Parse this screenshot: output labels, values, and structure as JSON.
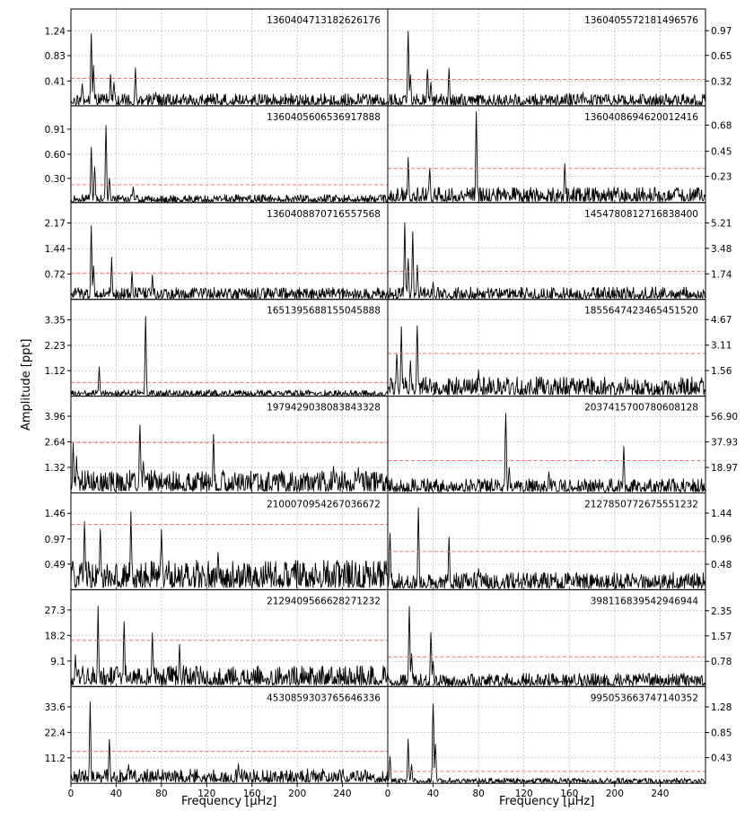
{
  "figure": {
    "ylabel": "Amplitude [ppt]",
    "xlabel_left": "Frequency [μHz]",
    "xlabel_right": "Frequency [μHz]"
  },
  "chart_data": [
    {
      "type": "line",
      "id": "1360404713182626176",
      "column": "left",
      "row": 0,
      "xlim": [
        0,
        280
      ],
      "ylim": [
        0,
        1.6
      ],
      "yticks": [
        "0.41",
        "0.83",
        "1.24"
      ],
      "threshold": 0.45,
      "peaks": [
        {
          "x": 10,
          "y": 0.38
        },
        {
          "x": 18,
          "y": 1.35
        },
        {
          "x": 20,
          "y": 0.7
        },
        {
          "x": 35,
          "y": 0.55
        },
        {
          "x": 38,
          "y": 0.42
        },
        {
          "x": 57,
          "y": 0.68
        },
        {
          "x": 75,
          "y": 0.25
        }
      ]
    },
    {
      "type": "line",
      "id": "1360405572181496576",
      "column": "right",
      "row": 0,
      "xlim": [
        0,
        280
      ],
      "ylim": [
        0,
        1.25
      ],
      "yticks": [
        "0.32",
        "0.65",
        "0.97"
      ],
      "threshold": 0.34,
      "peaks": [
        {
          "x": 18,
          "y": 1.12
        },
        {
          "x": 20,
          "y": 0.45
        },
        {
          "x": 35,
          "y": 0.55
        },
        {
          "x": 38,
          "y": 0.35
        },
        {
          "x": 54,
          "y": 0.5
        },
        {
          "x": 172,
          "y": 0.18
        }
      ]
    },
    {
      "type": "line",
      "id": "1360405606536917888",
      "column": "left",
      "row": 1,
      "xlim": [
        0,
        280
      ],
      "ylim": [
        0,
        1.2
      ],
      "yticks": [
        "0.30",
        "0.60",
        "0.91"
      ],
      "threshold": 0.22,
      "peaks": [
        {
          "x": 18,
          "y": 0.78
        },
        {
          "x": 21,
          "y": 0.5
        },
        {
          "x": 31,
          "y": 1.0
        },
        {
          "x": 34,
          "y": 0.35
        },
        {
          "x": 55,
          "y": 0.22
        }
      ]
    },
    {
      "type": "line",
      "id": "1360408694620012416",
      "column": "right",
      "row": 1,
      "xlim": [
        0,
        280
      ],
      "ylim": [
        0,
        0.85
      ],
      "yticks": [
        "0.23",
        "0.45",
        "0.68"
      ],
      "threshold": 0.3,
      "peaks": [
        {
          "x": 18,
          "y": 0.4
        },
        {
          "x": 37,
          "y": 0.35
        },
        {
          "x": 78,
          "y": 0.8
        },
        {
          "x": 156,
          "y": 0.38
        }
      ]
    },
    {
      "type": "line",
      "id": "1360408870716557568",
      "column": "left",
      "row": 2,
      "xlim": [
        0,
        280
      ],
      "ylim": [
        0,
        2.75
      ],
      "yticks": [
        "0.72",
        "1.44",
        "2.17"
      ],
      "threshold": 0.75,
      "peaks": [
        {
          "x": 18,
          "y": 2.3
        },
        {
          "x": 20,
          "y": 1.0
        },
        {
          "x": 36,
          "y": 1.25
        },
        {
          "x": 54,
          "y": 0.85
        },
        {
          "x": 72,
          "y": 0.7
        }
      ]
    },
    {
      "type": "line",
      "id": "1454780812716838400",
      "column": "right",
      "row": 2,
      "xlim": [
        0,
        280
      ],
      "ylim": [
        0,
        6.6
      ],
      "yticks": [
        "1.74",
        "3.48",
        "5.21"
      ],
      "threshold": 1.9,
      "peaks": [
        {
          "x": 15,
          "y": 5.6
        },
        {
          "x": 18,
          "y": 3.2
        },
        {
          "x": 22,
          "y": 5.1
        },
        {
          "x": 26,
          "y": 2.5
        },
        {
          "x": 40,
          "y": 1.3
        }
      ]
    },
    {
      "type": "line",
      "id": "1651395688155045888",
      "column": "left",
      "row": 3,
      "xlim": [
        0,
        280
      ],
      "ylim": [
        0,
        4.25
      ],
      "yticks": [
        "1.12",
        "2.23",
        "3.35"
      ],
      "threshold": 0.6,
      "peaks": [
        {
          "x": 25,
          "y": 1.3
        },
        {
          "x": 66,
          "y": 3.7
        }
      ]
    },
    {
      "type": "line",
      "id": "1855647423465451520",
      "column": "right",
      "row": 3,
      "xlim": [
        0,
        280
      ],
      "ylim": [
        0,
        5.9
      ],
      "yticks": [
        "1.56",
        "3.11",
        "4.67"
      ],
      "threshold": 2.6,
      "peaks": [
        {
          "x": 8,
          "y": 3.0
        },
        {
          "x": 12,
          "y": 4.4
        },
        {
          "x": 20,
          "y": 2.4
        },
        {
          "x": 26,
          "y": 4.9
        },
        {
          "x": 80,
          "y": 1.7
        },
        {
          "x": 105,
          "y": 1.2
        }
      ]
    },
    {
      "type": "line",
      "id": "1979429038083843328",
      "column": "left",
      "row": 4,
      "xlim": [
        0,
        280
      ],
      "ylim": [
        0,
        5.0
      ],
      "yticks": [
        "1.32",
        "2.64",
        "3.96"
      ],
      "threshold": 2.6,
      "peaks": [
        {
          "x": 2,
          "y": 2.9
        },
        {
          "x": 5,
          "y": 1.9
        },
        {
          "x": 61,
          "y": 4.1
        },
        {
          "x": 64,
          "y": 1.9
        },
        {
          "x": 126,
          "y": 3.4
        },
        {
          "x": 232,
          "y": 1.6
        },
        {
          "x": 254,
          "y": 1.5
        }
      ]
    },
    {
      "type": "line",
      "id": "2037415700780608128",
      "column": "right",
      "row": 4,
      "xlim": [
        0,
        280
      ],
      "ylim": [
        0,
        72
      ],
      "yticks": [
        "18.97",
        "37.93",
        "56.90"
      ],
      "threshold": 24,
      "peaks": [
        {
          "x": 104,
          "y": 66
        },
        {
          "x": 107,
          "y": 22
        },
        {
          "x": 142,
          "y": 18
        },
        {
          "x": 208,
          "y": 36
        }
      ]
    },
    {
      "type": "line",
      "id": "2100070954267036672",
      "column": "left",
      "row": 5,
      "xlim": [
        0,
        280
      ],
      "ylim": [
        0,
        1.85
      ],
      "yticks": [
        "0.49",
        "0.97",
        "1.46"
      ],
      "threshold": 1.25,
      "peaks": [
        {
          "x": 12,
          "y": 1.45
        },
        {
          "x": 26,
          "y": 1.35
        },
        {
          "x": 53,
          "y": 1.5
        },
        {
          "x": 80,
          "y": 1.3
        },
        {
          "x": 130,
          "y": 0.75
        }
      ]
    },
    {
      "type": "line",
      "id": "2127850772675551232",
      "column": "right",
      "row": 5,
      "xlim": [
        0,
        280
      ],
      "ylim": [
        0,
        1.82
      ],
      "yticks": [
        "0.48",
        "0.96",
        "1.44"
      ],
      "threshold": 0.72,
      "peaks": [
        {
          "x": 2,
          "y": 1.2
        },
        {
          "x": 27,
          "y": 1.6
        },
        {
          "x": 54,
          "y": 1.0
        },
        {
          "x": 80,
          "y": 0.45
        }
      ]
    },
    {
      "type": "line",
      "id": "2129409566628271232",
      "column": "left",
      "row": 6,
      "xlim": [
        0,
        280
      ],
      "ylim": [
        0,
        34.5
      ],
      "yticks": [
        "9.1",
        "18.2",
        "27.3"
      ],
      "threshold": 16.5,
      "peaks": [
        {
          "x": 24,
          "y": 29
        },
        {
          "x": 47,
          "y": 25
        },
        {
          "x": 72,
          "y": 21
        },
        {
          "x": 96,
          "y": 17
        },
        {
          "x": 4,
          "y": 12
        }
      ]
    },
    {
      "type": "line",
      "id": "398116839542946944",
      "column": "right",
      "row": 6,
      "xlim": [
        0,
        280
      ],
      "ylim": [
        0,
        3.0
      ],
      "yticks": [
        "0.78",
        "1.57",
        "2.35"
      ],
      "threshold": 0.92,
      "peaks": [
        {
          "x": 19,
          "y": 2.8
        },
        {
          "x": 21,
          "y": 1.1
        },
        {
          "x": 38,
          "y": 1.9
        },
        {
          "x": 40,
          "y": 0.9
        }
      ]
    },
    {
      "type": "line",
      "id": "4530859303765646336",
      "column": "left",
      "row": 7,
      "xlim": [
        0,
        280
      ],
      "ylim": [
        0,
        42.5
      ],
      "yticks": [
        "11.2",
        "22.4",
        "33.6"
      ],
      "threshold": 14,
      "peaks": [
        {
          "x": 17,
          "y": 37
        },
        {
          "x": 34,
          "y": 22
        },
        {
          "x": 51,
          "y": 9
        },
        {
          "x": 148,
          "y": 9
        }
      ]
    },
    {
      "type": "line",
      "id": "995053663747140352",
      "column": "right",
      "row": 7,
      "xlim": [
        0,
        280
      ],
      "ylim": [
        0,
        1.62
      ],
      "yticks": [
        "0.43",
        "0.85",
        "1.28"
      ],
      "threshold": 0.2,
      "peaks": [
        {
          "x": 2,
          "y": 0.5
        },
        {
          "x": 18,
          "y": 0.75
        },
        {
          "x": 21,
          "y": 0.35
        },
        {
          "x": 40,
          "y": 1.55
        },
        {
          "x": 42,
          "y": 0.75
        }
      ]
    }
  ],
  "xticks": [
    "0",
    "40",
    "80",
    "120",
    "160",
    "200",
    "240"
  ],
  "xtick_values": [
    0,
    40,
    80,
    120,
    160,
    200,
    240
  ]
}
